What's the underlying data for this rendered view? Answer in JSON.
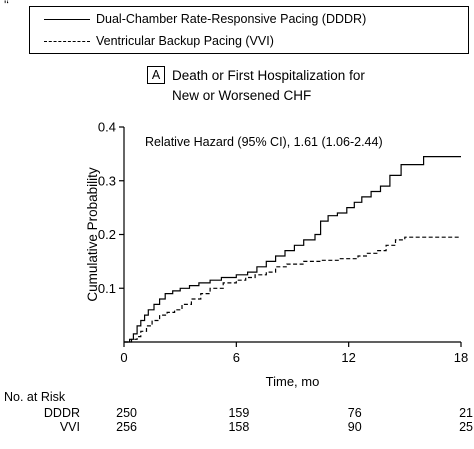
{
  "corner_mark": "'‘",
  "legend": [
    {
      "label": "Dual-Chamber Rate-Responsive Pacing (DDDR)",
      "style": "solid"
    },
    {
      "label": "Ventricular Backup Pacing (VVI)",
      "style": "dashed"
    }
  ],
  "panel": {
    "letter": "A",
    "title_line1": "Death or First Hospitalization for",
    "title_line2": "New or Worsened CHF"
  },
  "chart_data": {
    "type": "line",
    "step": true,
    "annotation": "Relative Hazard (95% CI), 1.61 (1.06-2.44)",
    "xlabel": "Time, mo",
    "ylabel": "Cumulative Probability",
    "xlim": [
      0,
      18
    ],
    "ylim": [
      0,
      0.4
    ],
    "xticks": [
      0,
      6,
      12,
      18
    ],
    "yticks": [
      0.1,
      0.2,
      0.3,
      0.4
    ],
    "ytick_labels": [
      "0.1",
      "0.2",
      "0.3",
      "0.4"
    ],
    "series": [
      {
        "name": "Dual-Chamber Rate-Responsive Pacing (DDDR)",
        "style": "solid",
        "points": [
          [
            0,
            0
          ],
          [
            0.3,
            0.005
          ],
          [
            0.5,
            0.015
          ],
          [
            0.7,
            0.03
          ],
          [
            0.9,
            0.04
          ],
          [
            1.1,
            0.05
          ],
          [
            1.3,
            0.06
          ],
          [
            1.6,
            0.07
          ],
          [
            1.9,
            0.08
          ],
          [
            2.2,
            0.09
          ],
          [
            2.6,
            0.095
          ],
          [
            3.0,
            0.1
          ],
          [
            3.5,
            0.105
          ],
          [
            4.0,
            0.11
          ],
          [
            4.6,
            0.115
          ],
          [
            5.2,
            0.12
          ],
          [
            6.0,
            0.125
          ],
          [
            6.6,
            0.13
          ],
          [
            7.1,
            0.14
          ],
          [
            7.6,
            0.15
          ],
          [
            8.1,
            0.16
          ],
          [
            8.6,
            0.17
          ],
          [
            9.1,
            0.18
          ],
          [
            9.6,
            0.19
          ],
          [
            10.2,
            0.2
          ],
          [
            10.5,
            0.225
          ],
          [
            10.9,
            0.235
          ],
          [
            11.4,
            0.24
          ],
          [
            11.9,
            0.25
          ],
          [
            12.3,
            0.26
          ],
          [
            12.7,
            0.27
          ],
          [
            13.2,
            0.28
          ],
          [
            13.7,
            0.29
          ],
          [
            14.2,
            0.31
          ],
          [
            14.8,
            0.33
          ],
          [
            16.0,
            0.345
          ],
          [
            18.0,
            0.345
          ]
        ]
      },
      {
        "name": "Ventricular Backup Pacing (VVI)",
        "style": "dashed",
        "points": [
          [
            0,
            0
          ],
          [
            0.4,
            0.005
          ],
          [
            0.7,
            0.01
          ],
          [
            0.9,
            0.02
          ],
          [
            1.2,
            0.03
          ],
          [
            1.5,
            0.04
          ],
          [
            1.9,
            0.05
          ],
          [
            2.3,
            0.055
          ],
          [
            2.7,
            0.06
          ],
          [
            3.1,
            0.07
          ],
          [
            3.6,
            0.08
          ],
          [
            4.1,
            0.09
          ],
          [
            4.6,
            0.1
          ],
          [
            5.3,
            0.11
          ],
          [
            6.0,
            0.115
          ],
          [
            6.5,
            0.12
          ],
          [
            7.0,
            0.125
          ],
          [
            7.6,
            0.13
          ],
          [
            8.1,
            0.14
          ],
          [
            8.7,
            0.145
          ],
          [
            9.6,
            0.15
          ],
          [
            10.5,
            0.152
          ],
          [
            11.5,
            0.155
          ],
          [
            12.5,
            0.16
          ],
          [
            13.0,
            0.165
          ],
          [
            13.5,
            0.17
          ],
          [
            14.0,
            0.18
          ],
          [
            14.5,
            0.19
          ],
          [
            15.0,
            0.195
          ],
          [
            18.0,
            0.195
          ]
        ]
      }
    ],
    "at_risk": {
      "title": "No. at Risk",
      "times": [
        0,
        6,
        12,
        18
      ],
      "rows": [
        {
          "label": "DDDR",
          "values": [
            "250",
            "159",
            "76",
            "21"
          ]
        },
        {
          "label": "VVI",
          "values": [
            "256",
            "158",
            "90",
            "25"
          ]
        }
      ]
    }
  }
}
